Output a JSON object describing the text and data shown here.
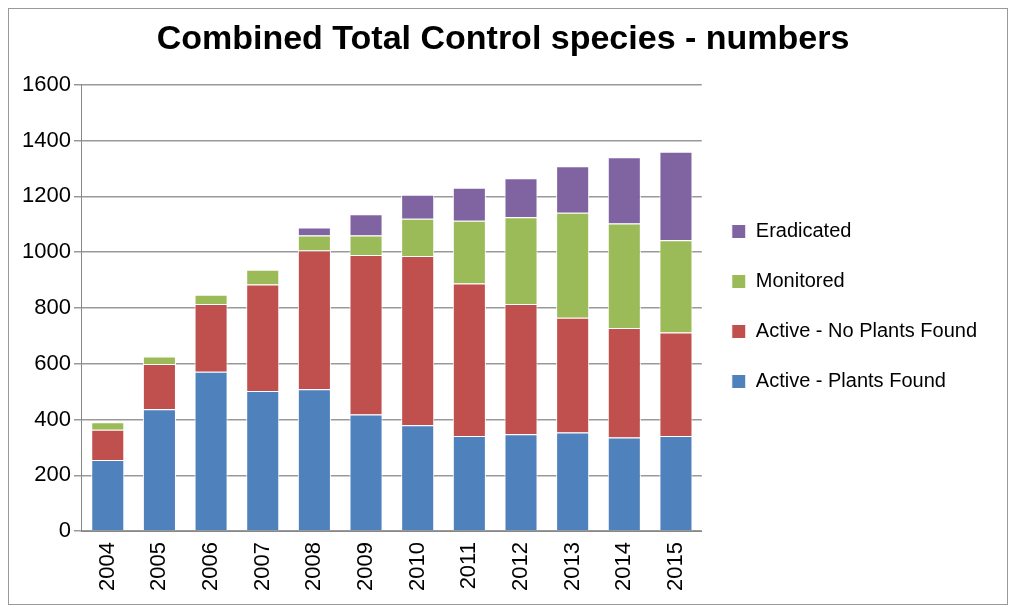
{
  "chart_data": {
    "type": "bar",
    "title": "Combined Total Control species - numbers",
    "stacked": true,
    "categories": [
      "2004",
      "2005",
      "2006",
      "2007",
      "2008",
      "2009",
      "2010",
      "2011",
      "2012",
      "2013",
      "2014",
      "2015"
    ],
    "series": [
      {
        "name": "Active - Plants Found",
        "color": "#4f81bd",
        "values": [
          255,
          437,
          571,
          502,
          508,
          418,
          379,
          341,
          347,
          353,
          335,
          341
        ]
      },
      {
        "name": "Active - No Plants Found",
        "color": "#c0504d",
        "values": [
          108,
          162,
          243,
          382,
          498,
          572,
          607,
          547,
          467,
          412,
          393,
          371
        ]
      },
      {
        "name": "Monitored",
        "color": "#9bbb59",
        "values": [
          27,
          27,
          33,
          53,
          54,
          70,
          134,
          225,
          311,
          376,
          375,
          331
        ]
      },
      {
        "name": "Eradicated",
        "color": "#8064a2",
        "values": [
          0,
          0,
          0,
          0,
          28,
          76,
          86,
          118,
          140,
          167,
          237,
          317
        ]
      }
    ],
    "ylim": [
      0,
      1600
    ],
    "yticks": [
      0,
      200,
      400,
      600,
      800,
      1000,
      1200,
      1400,
      1600
    ],
    "grid": "y",
    "legend": "right"
  }
}
